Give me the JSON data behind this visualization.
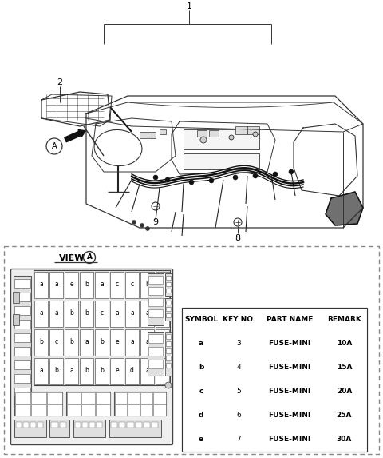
{
  "bg_color": "#ffffff",
  "label1": "1",
  "label2": "2",
  "label8": "8",
  "label9": "9",
  "circle_label": "A",
  "table_headers": [
    "SYMBOL",
    "KEY NO.",
    "PART NAME",
    "REMARK"
  ],
  "table_rows": [
    [
      "a",
      "3",
      "FUSE-MINI",
      "10A"
    ],
    [
      "b",
      "4",
      "FUSE-MINI",
      "15A"
    ],
    [
      "c",
      "5",
      "FUSE-MINI",
      "20A"
    ],
    [
      "d",
      "6",
      "FUSE-MINI",
      "25A"
    ],
    [
      "e",
      "7",
      "FUSE-MINI",
      "30A"
    ]
  ],
  "dashed_border_color": "#888888",
  "table_line_color": "#333333",
  "text_color": "#000000",
  "lc": "#333333",
  "fig_w": 4.8,
  "fig_h": 5.73,
  "dpi": 100
}
